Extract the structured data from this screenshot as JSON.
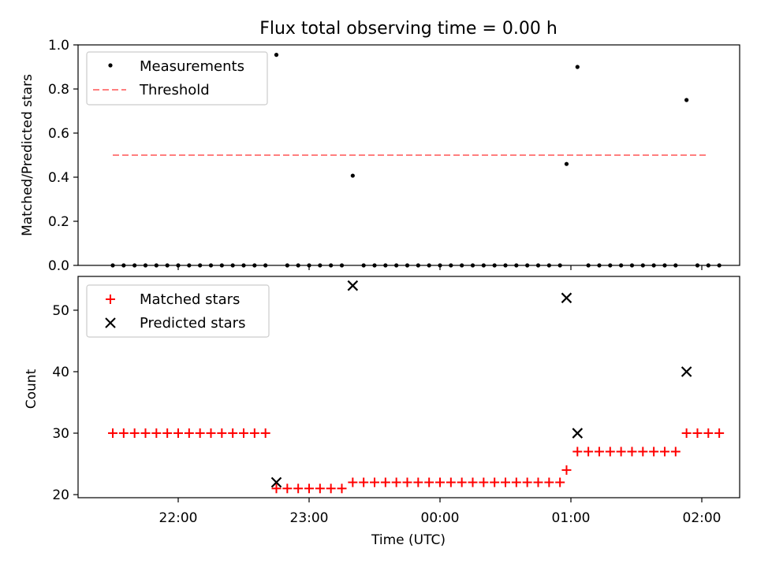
{
  "chart_data": [
    {
      "type": "scatter",
      "title": "Flux total observing time = 0.00 h",
      "xlabel": "",
      "ylabel": "Matched/Predicted stars",
      "ylim": [
        0,
        1.0
      ],
      "yticks": [
        "0.0",
        "0.2",
        "0.4",
        "0.6",
        "0.8",
        "1.0"
      ],
      "legend_position": "upper left",
      "series": [
        {
          "name": "Measurements",
          "color": "#000000",
          "marker": "dot",
          "points": [
            [
              "21:30",
              0
            ],
            [
              "21:35",
              0
            ],
            [
              "21:40",
              0
            ],
            [
              "21:45",
              0
            ],
            [
              "21:50",
              0
            ],
            [
              "21:55",
              0
            ],
            [
              "22:00",
              0
            ],
            [
              "22:05",
              0
            ],
            [
              "22:10",
              0
            ],
            [
              "22:15",
              0
            ],
            [
              "22:20",
              0
            ],
            [
              "22:25",
              0
            ],
            [
              "22:30",
              0
            ],
            [
              "22:35",
              0
            ],
            [
              "22:40",
              0
            ],
            [
              "22:45",
              0.955
            ],
            [
              "22:50",
              0
            ],
            [
              "22:55",
              0
            ],
            [
              "23:00",
              0
            ],
            [
              "23:05",
              0
            ],
            [
              "23:10",
              0
            ],
            [
              "23:15",
              0
            ],
            [
              "23:20",
              0.407
            ],
            [
              "23:25",
              0
            ],
            [
              "23:30",
              0
            ],
            [
              "23:35",
              0
            ],
            [
              "23:40",
              0
            ],
            [
              "23:45",
              0
            ],
            [
              "23:50",
              0
            ],
            [
              "23:55",
              0
            ],
            [
              "00:00",
              0
            ],
            [
              "00:05",
              0
            ],
            [
              "00:10",
              0
            ],
            [
              "00:15",
              0
            ],
            [
              "00:20",
              0
            ],
            [
              "00:25",
              0
            ],
            [
              "00:30",
              0
            ],
            [
              "00:35",
              0
            ],
            [
              "00:40",
              0
            ],
            [
              "00:45",
              0
            ],
            [
              "00:50",
              0
            ],
            [
              "00:55",
              0
            ],
            [
              "00:58",
              0.46
            ],
            [
              "01:03",
              0.9
            ],
            [
              "01:08",
              0
            ],
            [
              "01:13",
              0
            ],
            [
              "01:18",
              0
            ],
            [
              "01:23",
              0
            ],
            [
              "01:28",
              0
            ],
            [
              "01:33",
              0
            ],
            [
              "01:38",
              0
            ],
            [
              "01:43",
              0
            ],
            [
              "01:48",
              0
            ],
            [
              "01:53",
              0.75
            ],
            [
              "01:58",
              0
            ],
            [
              "02:03",
              0
            ],
            [
              "02:08",
              0
            ]
          ]
        },
        {
          "name": "Threshold",
          "color": "#ff7f7f",
          "style": "dashed",
          "points": [
            [
              "21:30",
              0.5
            ],
            [
              "02:03",
              0.5
            ]
          ]
        }
      ]
    },
    {
      "type": "scatter",
      "title": "",
      "xlabel": "Time (UTC)",
      "ylabel": "Count",
      "ylim": [
        19.5,
        55.5
      ],
      "yticks": [
        "20",
        "30",
        "40",
        "50"
      ],
      "xticks": [
        "22:00",
        "23:00",
        "00:00",
        "01:00",
        "02:00"
      ],
      "legend_position": "upper left",
      "series": [
        {
          "name": "Matched stars",
          "color": "#ff0000",
          "marker": "plus",
          "points": [
            [
              "21:30",
              30
            ],
            [
              "21:35",
              30
            ],
            [
              "21:40",
              30
            ],
            [
              "21:45",
              30
            ],
            [
              "21:50",
              30
            ],
            [
              "21:55",
              30
            ],
            [
              "22:00",
              30
            ],
            [
              "22:05",
              30
            ],
            [
              "22:10",
              30
            ],
            [
              "22:15",
              30
            ],
            [
              "22:20",
              30
            ],
            [
              "22:25",
              30
            ],
            [
              "22:30",
              30
            ],
            [
              "22:35",
              30
            ],
            [
              "22:40",
              30
            ],
            [
              "22:45",
              21
            ],
            [
              "22:50",
              21
            ],
            [
              "22:55",
              21
            ],
            [
              "23:00",
              21
            ],
            [
              "23:05",
              21
            ],
            [
              "23:10",
              21
            ],
            [
              "23:15",
              21
            ],
            [
              "23:20",
              22
            ],
            [
              "23:25",
              22
            ],
            [
              "23:30",
              22
            ],
            [
              "23:35",
              22
            ],
            [
              "23:40",
              22
            ],
            [
              "23:45",
              22
            ],
            [
              "23:50",
              22
            ],
            [
              "23:55",
              22
            ],
            [
              "00:00",
              22
            ],
            [
              "00:05",
              22
            ],
            [
              "00:10",
              22
            ],
            [
              "00:15",
              22
            ],
            [
              "00:20",
              22
            ],
            [
              "00:25",
              22
            ],
            [
              "00:30",
              22
            ],
            [
              "00:35",
              22
            ],
            [
              "00:40",
              22
            ],
            [
              "00:45",
              22
            ],
            [
              "00:50",
              22
            ],
            [
              "00:55",
              22
            ],
            [
              "00:58",
              24
            ],
            [
              "01:03",
              27
            ],
            [
              "01:08",
              27
            ],
            [
              "01:13",
              27
            ],
            [
              "01:18",
              27
            ],
            [
              "01:23",
              27
            ],
            [
              "01:28",
              27
            ],
            [
              "01:33",
              27
            ],
            [
              "01:38",
              27
            ],
            [
              "01:43",
              27
            ],
            [
              "01:48",
              27
            ],
            [
              "01:53",
              30
            ],
            [
              "01:58",
              30
            ],
            [
              "02:03",
              30
            ],
            [
              "02:08",
              30
            ]
          ]
        },
        {
          "name": "Predicted stars",
          "color": "#000000",
          "marker": "x",
          "points": [
            [
              "22:45",
              22
            ],
            [
              "23:20",
              54
            ],
            [
              "00:58",
              52
            ],
            [
              "01:03",
              30
            ],
            [
              "01:53",
              40
            ]
          ]
        }
      ]
    }
  ]
}
